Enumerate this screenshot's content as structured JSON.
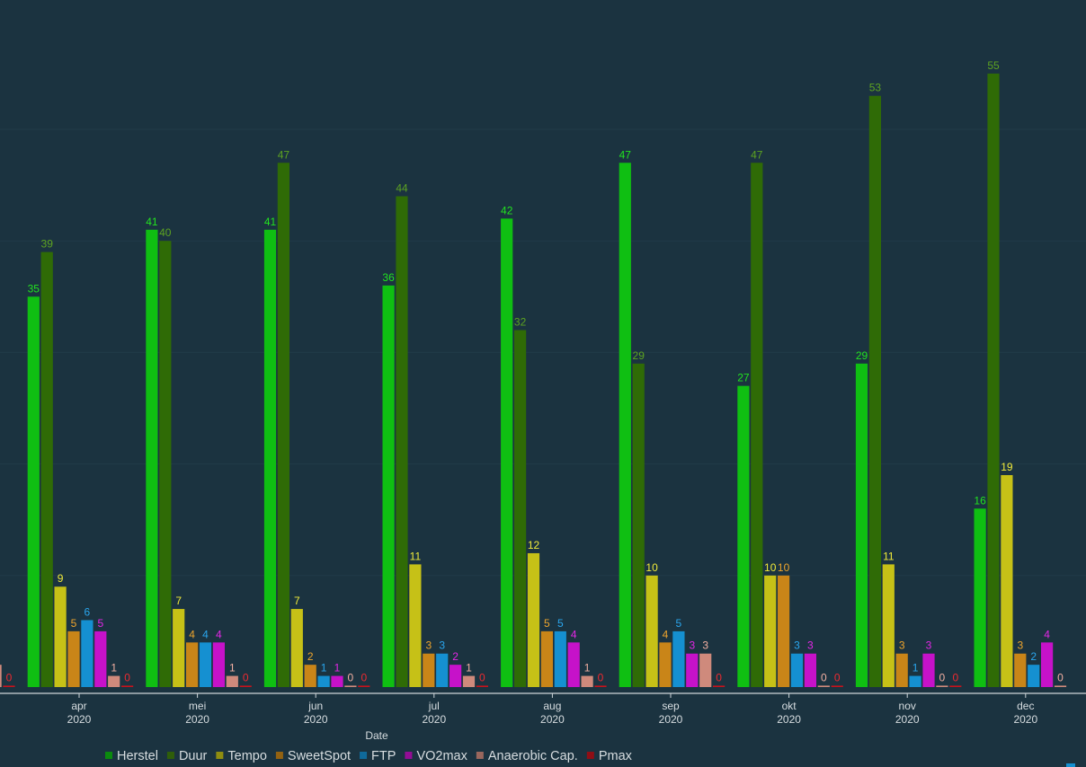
{
  "chart_data": {
    "type": "bar",
    "xlabel": "Date",
    "ylabel": "",
    "ylim": [
      0,
      57
    ],
    "grid": true,
    "legend_position": "bottom",
    "categories": [
      {
        "month": "apr",
        "year": "2020"
      },
      {
        "month": "mei",
        "year": "2020"
      },
      {
        "month": "jun",
        "year": "2020"
      },
      {
        "month": "jul",
        "year": "2020"
      },
      {
        "month": "aug",
        "year": "2020"
      },
      {
        "month": "sep",
        "year": "2020"
      },
      {
        "month": "okt",
        "year": "2020"
      },
      {
        "month": "nov",
        "year": "2020"
      },
      {
        "month": "dec",
        "year": "2020"
      }
    ],
    "series": [
      {
        "name": "Herstel",
        "color": "#0fbf12",
        "label_color": "#22e31f",
        "legend_color": "#0b8a0e",
        "values": [
          35,
          41,
          41,
          36,
          42,
          47,
          27,
          29,
          16
        ]
      },
      {
        "name": "Duur",
        "color": "#2f6b06",
        "label_color": "#5da321",
        "legend_color": "#2f5e0a",
        "values": [
          39,
          40,
          47,
          44,
          32,
          29,
          47,
          53,
          55
        ]
      },
      {
        "name": "Tempo",
        "color": "#c6c117",
        "label_color": "#f1eb3a",
        "legend_color": "#8f8d10",
        "values": [
          9,
          7,
          7,
          11,
          12,
          10,
          10,
          11,
          19
        ]
      },
      {
        "name": "SweetSpot",
        "color": "#c98518",
        "label_color": "#efa52c",
        "legend_color": "#936211",
        "values": [
          5,
          4,
          2,
          3,
          5,
          4,
          10,
          3,
          3
        ]
      },
      {
        "name": "FTP",
        "color": "#1590d1",
        "label_color": "#2aa6ee",
        "legend_color": "#0f6a9b",
        "values": [
          6,
          4,
          1,
          3,
          5,
          5,
          3,
          1,
          2
        ]
      },
      {
        "name": "VO2max",
        "color": "#c612c9",
        "label_color": "#e327e6",
        "legend_color": "#930d95",
        "values": [
          5,
          4,
          1,
          2,
          4,
          3,
          3,
          3,
          4
        ]
      },
      {
        "name": "Anaerobic Cap.",
        "color": "#cf8a7c",
        "label_color": "#f3b0a2",
        "legend_color": "#9a675d",
        "values": [
          1,
          1,
          0,
          1,
          1,
          3,
          0,
          0,
          0
        ]
      },
      {
        "name": "Pmax",
        "color": "#c8131c",
        "label_color": "#ee2a30",
        "legend_color": "#8f0e15",
        "values": [
          0,
          0,
          0,
          0,
          0,
          0,
          0,
          0,
          null
        ]
      }
    ],
    "partial_left_category": {
      "bars": [
        {
          "series": "Anaerobic Cap.",
          "value": 2
        },
        {
          "series": "Pmax",
          "value": 0
        }
      ]
    }
  }
}
